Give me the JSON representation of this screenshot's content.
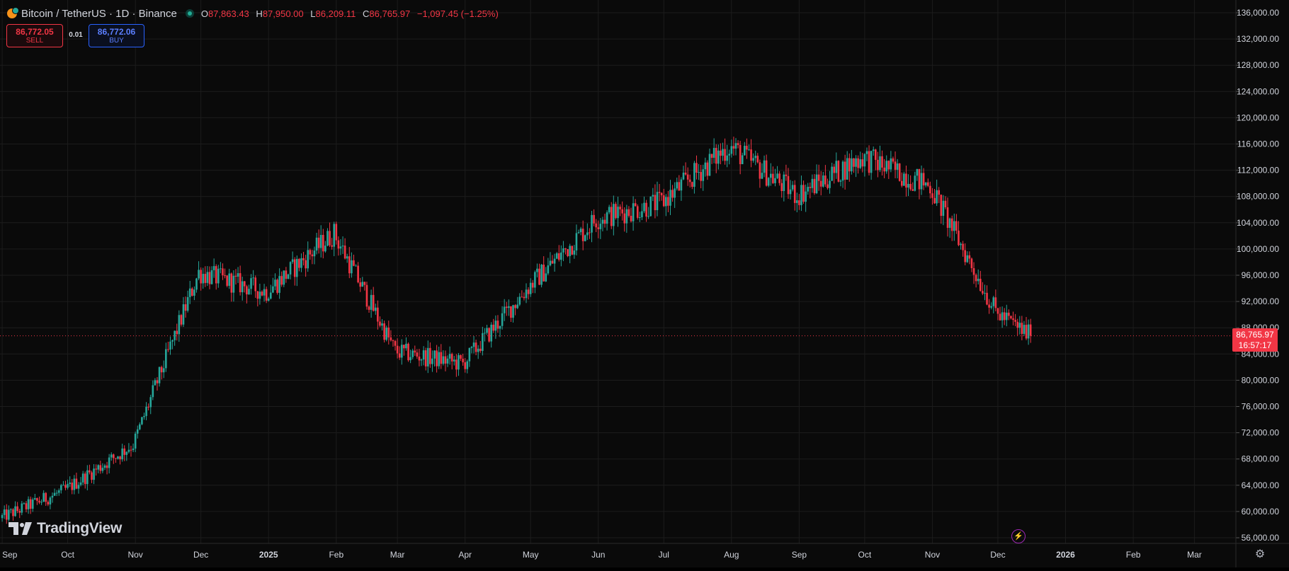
{
  "symbol": {
    "title": "Bitcoin / TetherUS · 1D · Binance",
    "icon": "bitcoin-icon",
    "status": "market-open-dot",
    "ohlc": {
      "open_key": "O",
      "open": "87,863.43",
      "high_key": "H",
      "high": "87,950.00",
      "low_key": "L",
      "low": "86,209.11",
      "close_key": "C",
      "close": "86,765.97",
      "change": "−1,097.45 (−1.25%)"
    }
  },
  "trade_panel": {
    "sell_price": "86,772.05",
    "sell_label": "SELL",
    "quantity": "0.01",
    "buy_price": "86,772.06",
    "buy_label": "BUY"
  },
  "last_price": {
    "value": "86,765.97",
    "countdown": "16:57:17"
  },
  "logo": {
    "text": "TradingView"
  },
  "colors": {
    "up": "#26a69a",
    "down": "#f23645",
    "grid": "#1c1c1c",
    "background": "#0a0a0a",
    "axis_text": "#d1d4dc",
    "price_line": "#f23645"
  },
  "chart_data": {
    "type": "candlestick",
    "title": "Bitcoin / TetherUS · 1D · Binance",
    "ylim": [
      54000,
      137000
    ],
    "y_ticks": [
      "136,000.00",
      "132,000.00",
      "128,000.00",
      "124,000.00",
      "120,000.00",
      "116,000.00",
      "112,000.00",
      "108,000.00",
      "104,000.00",
      "100,000.00",
      "96,000.00",
      "92,000.00",
      "88,000.00",
      "84,000.00",
      "80,000.00",
      "76,000.00",
      "72,000.00",
      "68,000.00",
      "64,000.00",
      "60,000.00",
      "56,000.00"
    ],
    "x_ticks": [
      "Sep",
      "Oct",
      "Nov",
      "Dec",
      "2025",
      "Feb",
      "Mar",
      "Apr",
      "May",
      "Jun",
      "Jul",
      "Aug",
      "Sep",
      "Oct",
      "Nov",
      "Dec",
      "2026",
      "Feb",
      "Mar"
    ],
    "x_range": [
      "2024-08-31",
      "2026-03-20"
    ],
    "grid": true,
    "last_close": 86765.97,
    "price_path_month_end": [
      {
        "date": "2024-08-31",
        "close": 59000
      },
      {
        "date": "2024-09-30",
        "close": 63300
      },
      {
        "date": "2024-10-31",
        "close": 70200
      },
      {
        "date": "2024-11-30",
        "close": 96400
      },
      {
        "date": "2024-12-31",
        "close": 93500
      },
      {
        "date": "2025-01-31",
        "close": 102400
      },
      {
        "date": "2025-02-28",
        "close": 84400
      },
      {
        "date": "2025-03-31",
        "close": 82500
      },
      {
        "date": "2025-04-30",
        "close": 94200
      },
      {
        "date": "2025-05-31",
        "close": 104600
      },
      {
        "date": "2025-06-30",
        "close": 107100
      },
      {
        "date": "2025-07-31",
        "close": 115700
      },
      {
        "date": "2025-08-31",
        "close": 108200
      },
      {
        "date": "2025-09-30",
        "close": 114000
      },
      {
        "date": "2025-10-31",
        "close": 109600
      },
      {
        "date": "2025-11-30",
        "close": 90400
      },
      {
        "date": "2025-12-16",
        "close": 86765.97
      }
    ]
  }
}
